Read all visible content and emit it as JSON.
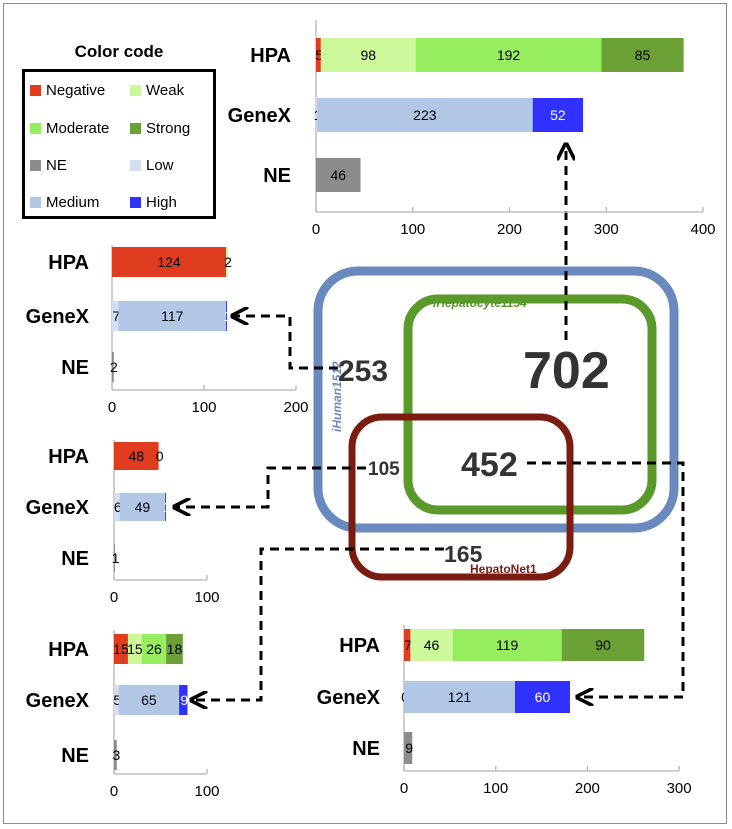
{
  "legend": {
    "title": "Color code",
    "items": [
      {
        "label": "Negative",
        "color": "#e03c1f"
      },
      {
        "label": "Weak",
        "color": "#ccf79a"
      },
      {
        "label": "Moderate",
        "color": "#96ee5e"
      },
      {
        "label": "Strong",
        "color": "#6aa036"
      },
      {
        "label": "NE",
        "color": "#8c8c8c"
      },
      {
        "label": "Low",
        "color": "#d2dff2"
      },
      {
        "label": "Medium",
        "color": "#b2c6e6"
      },
      {
        "label": "High",
        "color": "#3030ff"
      }
    ]
  },
  "venn": {
    "sets": [
      {
        "name": "iHuman1512",
        "color": "#6a89bf"
      },
      {
        "name": "iHepatocyte1154",
        "color": "#5a9a2a"
      },
      {
        "name": "HepatoNet1",
        "color": "#7a1c10"
      }
    ],
    "regions": [
      {
        "id": "human_only",
        "count": "253"
      },
      {
        "id": "human_hepatocyte",
        "count": "702"
      },
      {
        "id": "human_hepatonet",
        "count": "105"
      },
      {
        "id": "all_three",
        "count": "452"
      },
      {
        "id": "hepatonet_only",
        "count": "165"
      }
    ]
  },
  "chart_data": [
    {
      "id": "702",
      "type": "bar",
      "orientation": "horizontal",
      "stacked": true,
      "categories": [
        "HPA",
        "GeneX",
        "NE"
      ],
      "series": [
        {
          "category": "HPA",
          "segments": [
            {
              "level": "Negative",
              "value": 5
            },
            {
              "level": "Weak",
              "value": 98
            },
            {
              "level": "Moderate",
              "value": 192
            },
            {
              "level": "Strong",
              "value": 85
            }
          ]
        },
        {
          "category": "GeneX",
          "segments": [
            {
              "level": "Low",
              "value": 1
            },
            {
              "level": "Medium",
              "value": 223
            },
            {
              "level": "High",
              "value": 52
            }
          ]
        },
        {
          "category": "NE",
          "segments": [
            {
              "level": "NE",
              "value": 46
            }
          ]
        }
      ],
      "xlim": [
        0,
        400
      ],
      "ticks": [
        "0",
        "100",
        "200",
        "300",
        "400"
      ]
    },
    {
      "id": "253",
      "type": "bar",
      "orientation": "horizontal",
      "stacked": true,
      "categories": [
        "HPA",
        "GeneX",
        "NE"
      ],
      "series": [
        {
          "category": "HPA",
          "segments": [
            {
              "level": "Negative",
              "value": 124
            },
            {
              "level": "Weak",
              "value": 2
            }
          ]
        },
        {
          "category": "GeneX",
          "segments": [
            {
              "level": "Low",
              "value": 7
            },
            {
              "level": "Medium",
              "value": 117
            },
            {
              "level": "High",
              "value": 1
            }
          ]
        },
        {
          "category": "NE",
          "segments": [
            {
              "level": "NE",
              "value": 2
            }
          ]
        }
      ],
      "xlim": [
        0,
        200
      ],
      "ticks": [
        "0",
        "100",
        "200"
      ]
    },
    {
      "id": "105",
      "type": "bar",
      "orientation": "horizontal",
      "stacked": true,
      "categories": [
        "HPA",
        "GeneX",
        "NE"
      ],
      "series": [
        {
          "category": "HPA",
          "segments": [
            {
              "level": "Negative",
              "value": 48
            },
            {
              "level": "Weak",
              "value": 0
            }
          ]
        },
        {
          "category": "GeneX",
          "segments": [
            {
              "level": "Low",
              "value": 6
            },
            {
              "level": "Medium",
              "value": 49
            },
            {
              "level": "High",
              "value": 1
            }
          ]
        },
        {
          "category": "NE",
          "segments": [
            {
              "level": "NE",
              "value": 1
            }
          ]
        }
      ],
      "xlim": [
        0,
        100
      ],
      "ticks": [
        "0",
        "100"
      ]
    },
    {
      "id": "165",
      "type": "bar",
      "orientation": "horizontal",
      "stacked": true,
      "categories": [
        "HPA",
        "GeneX",
        "NE"
      ],
      "series": [
        {
          "category": "HPA",
          "segments": [
            {
              "level": "Negative",
              "value": 15
            },
            {
              "level": "Weak",
              "value": 15
            },
            {
              "level": "Moderate",
              "value": 26
            },
            {
              "level": "Strong",
              "value": 18
            }
          ]
        },
        {
          "category": "GeneX",
          "segments": [
            {
              "level": "Low",
              "value": 5
            },
            {
              "level": "Medium",
              "value": 65
            },
            {
              "level": "High",
              "value": 9
            }
          ]
        },
        {
          "category": "NE",
          "segments": [
            {
              "level": "NE",
              "value": 3
            }
          ]
        }
      ],
      "xlim": [
        0,
        100
      ],
      "ticks": [
        "0",
        "100"
      ]
    },
    {
      "id": "452",
      "type": "bar",
      "orientation": "horizontal",
      "stacked": true,
      "categories": [
        "HPA",
        "GeneX",
        "NE"
      ],
      "series": [
        {
          "category": "HPA",
          "segments": [
            {
              "level": "Negative",
              "value": 7
            },
            {
              "level": "Weak",
              "value": 46
            },
            {
              "level": "Moderate",
              "value": 119
            },
            {
              "level": "Strong",
              "value": 90
            }
          ]
        },
        {
          "category": "GeneX",
          "segments": [
            {
              "level": "Low",
              "value": 0
            },
            {
              "level": "Medium",
              "value": 121
            },
            {
              "level": "High",
              "value": 60
            }
          ]
        },
        {
          "category": "NE",
          "segments": [
            {
              "level": "NE",
              "value": 9
            }
          ]
        }
      ],
      "xlim": [
        0,
        300
      ],
      "ticks": [
        "0",
        "100",
        "200",
        "300"
      ]
    }
  ]
}
